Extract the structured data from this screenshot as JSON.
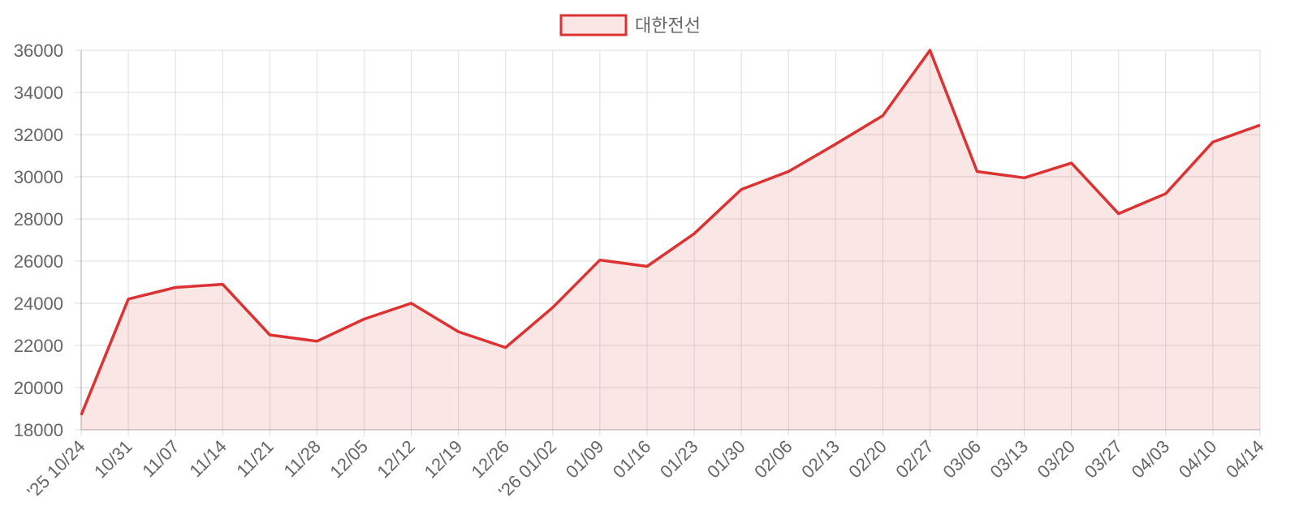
{
  "chart_data": {
    "type": "line",
    "categories": [
      "'25 10/24",
      "10/31",
      "11/07",
      "11/14",
      "11/21",
      "11/28",
      "12/05",
      "12/12",
      "12/19",
      "12/26",
      "'26 01/02",
      "01/09",
      "01/16",
      "01/23",
      "01/30",
      "02/06",
      "02/13",
      "02/20",
      "02/27",
      "03/06",
      "03/13",
      "03/20",
      "03/27",
      "04/03",
      "04/10",
      "04/14"
    ],
    "series": [
      {
        "name": "대한전선",
        "color": "#dc3232",
        "values": [
          18700,
          24200,
          24750,
          24900,
          22500,
          22200,
          23250,
          24000,
          22650,
          21900,
          23800,
          26050,
          25750,
          27300,
          29400,
          30250,
          31550,
          32900,
          36000,
          30250,
          29950,
          30650,
          28250,
          29200,
          31650,
          32450
        ]
      }
    ],
    "ylim": [
      18000,
      36000
    ],
    "yticks": [
      18000,
      20000,
      22000,
      24000,
      26000,
      28000,
      30000,
      32000,
      34000,
      36000
    ],
    "grid": true,
    "fill": true,
    "legend": "top"
  }
}
